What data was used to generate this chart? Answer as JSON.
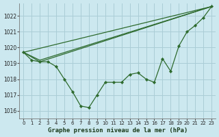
{
  "title": "Graphe pression niveau de la mer (hPa)",
  "background_color": "#cce8ef",
  "grid_color": "#aacdd6",
  "line_color": "#2d6a2d",
  "marker_color": "#2d6a2d",
  "ylim": [
    1015.5,
    1022.8
  ],
  "xlim": [
    -0.5,
    23.5
  ],
  "yticks": [
    1016,
    1017,
    1018,
    1019,
    1020,
    1021,
    1022
  ],
  "xticks": [
    0,
    1,
    2,
    3,
    4,
    5,
    6,
    7,
    8,
    9,
    10,
    11,
    12,
    13,
    14,
    15,
    16,
    17,
    18,
    19,
    20,
    21,
    22,
    23
  ],
  "series_main": [
    1019.7,
    1019.2,
    1019.1,
    1019.1,
    1018.8,
    1018.0,
    1017.2,
    1016.3,
    1016.2,
    1017.0,
    1017.8,
    1017.8,
    1017.8,
    1018.3,
    1018.4,
    1018.0,
    1017.8,
    1019.3,
    1018.5,
    1020.1,
    1021.0,
    1021.4,
    1021.9,
    1022.6
  ],
  "line1_x": [
    0,
    2,
    23
  ],
  "line1_y": [
    1019.7,
    1019.1,
    1022.6
  ],
  "line2_x": [
    0,
    2,
    23
  ],
  "line2_y": [
    1019.7,
    1019.2,
    1022.6
  ],
  "line3_x": [
    0,
    23
  ],
  "line3_y": [
    1019.7,
    1022.6
  ]
}
